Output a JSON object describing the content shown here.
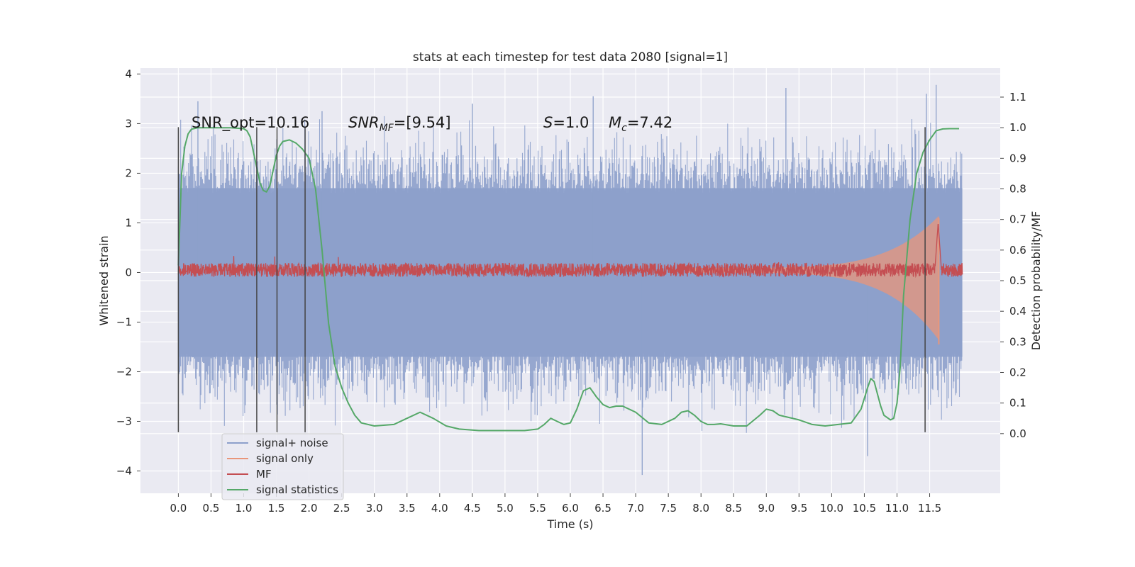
{
  "chart_data": {
    "type": "line",
    "title": "stats at each timestep for test data 2080 [signal=1]",
    "xlabel": "Time (s)",
    "ylabel": "Whitened strain",
    "ylabel_right": "Detection probability/MF",
    "xlim": [
      -0.58,
      12.58
    ],
    "ylim": [
      -4.45,
      4.12
    ],
    "ylim_right": [
      -0.195,
      1.195
    ],
    "x_ticks": [
      "0.0",
      "0.5",
      "1.0",
      "1.5",
      "2.0",
      "2.5",
      "3.0",
      "3.5",
      "4.0",
      "4.5",
      "5.0",
      "5.5",
      "6.0",
      "6.5",
      "7.0",
      "7.5",
      "8.0",
      "8.5",
      "9.0",
      "9.5",
      "10.0",
      "10.5",
      "11.0",
      "11.5"
    ],
    "y_ticks": [
      "4",
      "3",
      "2",
      "1",
      "0",
      "−1",
      "−2",
      "−3",
      "−4"
    ],
    "y_ticks_right": [
      "1.1",
      "1.0",
      "0.9",
      "0.8",
      "0.7",
      "0.6",
      "0.5",
      "0.4",
      "0.3",
      "0.2",
      "0.1",
      "0.0"
    ],
    "grid": true,
    "legend_position": "lower-left",
    "annotations": {
      "snr_opt": "SNR_opt=10.16",
      "snr_mf_base": "SNR",
      "snr_mf_sub": "MF",
      "snr_mf_value": "=[9.54]",
      "s_var": "S",
      "s_value": "=1.0",
      "mc_var": "M",
      "mc_sub": "c",
      "mc_value": "=7.42"
    },
    "vertical_markers_x": [
      0.0,
      1.2,
      1.51,
      1.94,
      11.43
    ],
    "series": [
      {
        "name": "signal+ noise",
        "color": "#8da0cb",
        "axis": "left",
        "kind": "noise",
        "x_range": [
          0.0,
          12.0
        ],
        "envelope_abs": 2.0,
        "max_value": 3.78,
        "min_value": -4.1
      },
      {
        "name": "signal only",
        "color": "#e9967a",
        "axis": "left",
        "kind": "chirp",
        "x_range": [
          7.8,
          11.65
        ],
        "peak_value": 1.1,
        "trough_value": -1.45
      },
      {
        "name": "MF",
        "color": "#c44e52",
        "axis": "right",
        "kind": "noise",
        "x_range": [
          0.0,
          12.0
        ],
        "center": 0.535,
        "peak_value": 0.69,
        "peak_x": 11.63
      },
      {
        "name": "signal statistics",
        "color": "#55a868",
        "axis": "right",
        "kind": "curve",
        "x": [
          0.0,
          0.05,
          0.1,
          0.15,
          0.2,
          0.3,
          0.5,
          0.8,
          1.0,
          1.05,
          1.1,
          1.15,
          1.2,
          1.25,
          1.3,
          1.35,
          1.4,
          1.45,
          1.5,
          1.55,
          1.6,
          1.7,
          1.8,
          1.9,
          2.0,
          2.1,
          2.2,
          2.3,
          2.4,
          2.5,
          2.6,
          2.7,
          2.8,
          3.0,
          3.3,
          3.5,
          3.7,
          3.9,
          4.1,
          4.3,
          4.6,
          5.0,
          5.3,
          5.5,
          5.6,
          5.7,
          5.8,
          5.9,
          6.0,
          6.1,
          6.2,
          6.3,
          6.4,
          6.5,
          6.6,
          6.7,
          6.8,
          7.0,
          7.2,
          7.4,
          7.6,
          7.7,
          7.8,
          7.9,
          8.0,
          8.1,
          8.2,
          8.3,
          8.5,
          8.7,
          8.9,
          9.0,
          9.1,
          9.2,
          9.5,
          9.7,
          9.9,
          10.1,
          10.3,
          10.45,
          10.55,
          10.6,
          10.65,
          10.7,
          10.75,
          10.8,
          10.9,
          10.95,
          11.0,
          11.05,
          11.1,
          11.2,
          11.3,
          11.4,
          11.5,
          11.6,
          11.7,
          11.8,
          11.95
        ],
        "y": [
          0.55,
          0.85,
          0.94,
          0.98,
          0.995,
          1.0,
          1.0,
          1.0,
          0.997,
          0.99,
          0.97,
          0.92,
          0.87,
          0.82,
          0.795,
          0.79,
          0.81,
          0.86,
          0.91,
          0.94,
          0.955,
          0.96,
          0.95,
          0.93,
          0.9,
          0.8,
          0.6,
          0.36,
          0.22,
          0.15,
          0.1,
          0.06,
          0.035,
          0.025,
          0.03,
          0.05,
          0.07,
          0.05,
          0.025,
          0.015,
          0.01,
          0.01,
          0.01,
          0.015,
          0.03,
          0.05,
          0.04,
          0.03,
          0.035,
          0.08,
          0.14,
          0.15,
          0.12,
          0.095,
          0.085,
          0.09,
          0.09,
          0.07,
          0.035,
          0.03,
          0.05,
          0.07,
          0.075,
          0.06,
          0.04,
          0.03,
          0.03,
          0.032,
          0.025,
          0.025,
          0.06,
          0.08,
          0.075,
          0.06,
          0.045,
          0.03,
          0.025,
          0.03,
          0.035,
          0.08,
          0.15,
          0.18,
          0.17,
          0.13,
          0.09,
          0.06,
          0.045,
          0.05,
          0.1,
          0.22,
          0.45,
          0.7,
          0.85,
          0.92,
          0.96,
          0.99,
          0.996,
          0.997,
          0.997
        ]
      }
    ]
  }
}
